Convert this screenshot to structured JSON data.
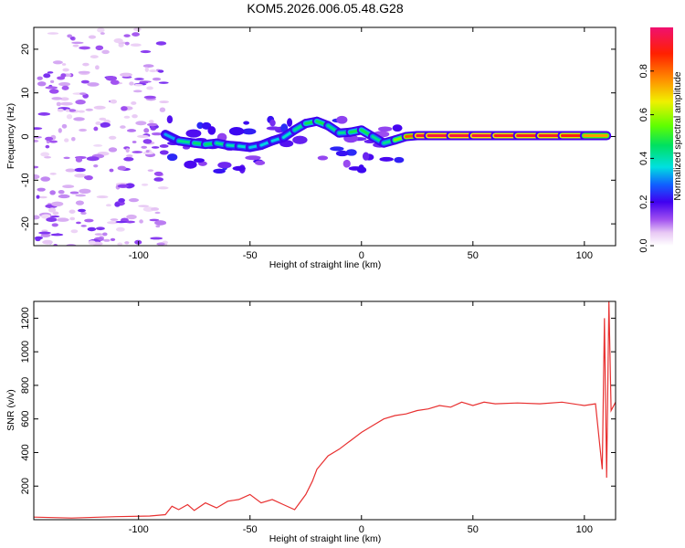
{
  "title": "KOM5.2026.006.05.48.G28",
  "chart_data": [
    {
      "type": "heatmap",
      "xlabel": "Height of straight line (km)",
      "ylabel": "Frequency (Hz)",
      "xlim": [
        -147,
        114
      ],
      "ylim": [
        -25,
        25
      ],
      "xticks": [
        -100,
        -50,
        0,
        50,
        100
      ],
      "yticks": [
        -20,
        -10,
        0,
        10,
        20
      ],
      "colorbar": {
        "label": "Normalized spectral amplitude",
        "range": [
          0.0,
          1.0
        ],
        "ticks": [
          0.0,
          0.2,
          0.4,
          0.6,
          0.8
        ]
      },
      "ridge": {
        "x": [
          -88,
          -82,
          -75,
          -70,
          -65,
          -60,
          -55,
          -50,
          -45,
          -40,
          -35,
          -30,
          -25,
          -20,
          -15,
          -10,
          -5,
          0,
          5,
          10,
          15,
          20,
          25,
          30,
          40,
          50,
          60,
          70,
          80,
          90,
          100,
          110
        ],
        "freq": [
          0.5,
          -1.0,
          -1.5,
          -1.8,
          -1.5,
          -2.0,
          -2.2,
          -2.5,
          -2.0,
          -1.0,
          -0.2,
          1.5,
          3.0,
          3.5,
          2.5,
          0.8,
          1.0,
          1.5,
          0.0,
          -1.5,
          -0.8,
          0.0,
          0.2,
          0.2,
          0.2,
          0.2,
          0.2,
          0.2,
          0.2,
          0.2,
          0.2,
          0.2
        ],
        "amplitude": [
          0.25,
          0.4,
          0.45,
          0.45,
          0.45,
          0.4,
          0.4,
          0.35,
          0.35,
          0.35,
          0.35,
          0.4,
          0.45,
          0.5,
          0.45,
          0.4,
          0.45,
          0.5,
          0.45,
          0.4,
          0.45,
          0.7,
          0.95,
          0.95,
          0.95,
          0.95,
          0.95,
          0.9,
          0.95,
          0.9,
          0.9,
          0.6
        ]
      }
    },
    {
      "type": "line",
      "xlabel": "Height of straight line (km)",
      "ylabel": "SNR (v/v)",
      "xlim": [
        -147,
        114
      ],
      "ylim": [
        0,
        1300
      ],
      "xticks": [
        -100,
        -50,
        0,
        50,
        100
      ],
      "yticks": [
        200,
        400,
        600,
        800,
        1000,
        1200
      ],
      "series": [
        {
          "x": [
            -147,
            -130,
            -110,
            -95,
            -88,
            -85,
            -82,
            -78,
            -75,
            -70,
            -65,
            -60,
            -55,
            -50,
            -45,
            -40,
            -35,
            -30,
            -25,
            -22,
            -20,
            -15,
            -10,
            -5,
            0,
            5,
            10,
            15,
            20,
            25,
            30,
            35,
            40,
            45,
            50,
            55,
            60,
            70,
            80,
            90,
            100,
            105,
            108,
            109,
            110,
            111,
            112,
            114
          ],
          "y": [
            15,
            10,
            18,
            22,
            30,
            80,
            60,
            90,
            55,
            100,
            70,
            110,
            120,
            150,
            100,
            120,
            90,
            60,
            150,
            230,
            300,
            380,
            420,
            470,
            520,
            560,
            600,
            620,
            630,
            650,
            660,
            680,
            670,
            700,
            680,
            700,
            690,
            695,
            690,
            700,
            680,
            690,
            300,
            1200,
            250,
            1300,
            650,
            700
          ],
          "color": "#e83030"
        }
      ]
    }
  ]
}
